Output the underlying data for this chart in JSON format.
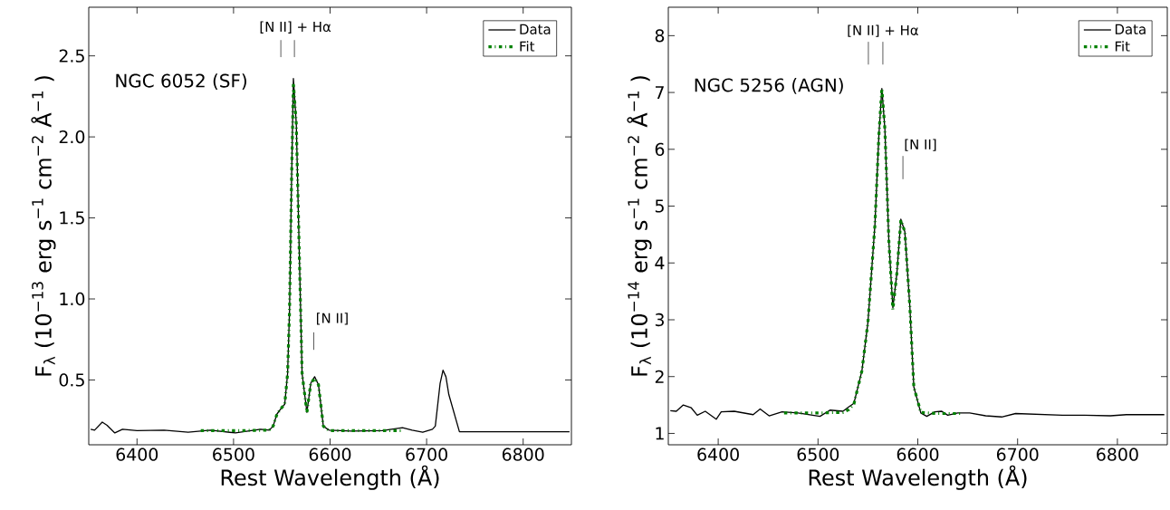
{
  "chart_data": [
    {
      "type": "line",
      "xlabel": "Rest Wavelength (Å)",
      "ylabel": "F$_{λ}$ (10$^{−13}$ erg s$^{−1}$ cm$^{−2}$ Å$^{−1}$ )",
      "xlim": [
        6350,
        6850
      ],
      "ylim": [
        0.1,
        2.8
      ],
      "xticks": [
        6400,
        6500,
        6600,
        6700,
        6800
      ],
      "yticks": [
        {
          "value": 0.5,
          "label": "0.5"
        },
        {
          "value": 1.0,
          "label": "1.0"
        },
        {
          "value": 1.5,
          "label": "1.5"
        },
        {
          "value": 2.0,
          "label": "2.0"
        },
        {
          "value": 2.5,
          "label": "2.5"
        }
      ],
      "legend": "top right",
      "grid": false,
      "annotations": [
        "NGC 6052  (SF)",
        "[N II] + Hα",
        "[N II]"
      ],
      "series": [
        {
          "name": "Data",
          "color": "#000000",
          "line_style": "solid",
          "x": [
            6352,
            6356,
            6364,
            6369,
            6377,
            6385,
            6400,
            6428,
            6453,
            6476,
            6502,
            6528,
            6537,
            6541,
            6545,
            6550,
            6553,
            6556,
            6558,
            6560,
            6562,
            6565,
            6568,
            6571,
            6576,
            6580,
            6584,
            6588,
            6593,
            6599,
            6622,
            6654,
            6675,
            6685,
            6696,
            6706,
            6709,
            6714,
            6717,
            6720,
            6723,
            6734,
            6768,
            6800,
            6848
          ],
          "values": [
            0.196,
            0.19,
            0.24,
            0.22,
            0.173,
            0.196,
            0.187,
            0.19,
            0.177,
            0.19,
            0.173,
            0.196,
            0.19,
            0.215,
            0.29,
            0.33,
            0.35,
            0.54,
            0.93,
            1.7,
            2.36,
            2.08,
            1.31,
            0.54,
            0.3,
            0.48,
            0.52,
            0.47,
            0.215,
            0.19,
            0.185,
            0.187,
            0.206,
            0.19,
            0.177,
            0.196,
            0.215,
            0.48,
            0.56,
            0.52,
            0.41,
            0.18,
            0.18,
            0.18,
            0.18
          ]
        },
        {
          "name": "Fit",
          "color": "#008000",
          "line_style": "dotted",
          "x": [
            6466,
            6500,
            6537,
            6541,
            6545,
            6550,
            6553,
            6556,
            6558,
            6560,
            6562,
            6565,
            6568,
            6571,
            6576,
            6580,
            6584,
            6588,
            6593,
            6599,
            6675
          ],
          "values": [
            0.187,
            0.187,
            0.19,
            0.215,
            0.29,
            0.33,
            0.35,
            0.54,
            0.93,
            1.7,
            2.33,
            2.08,
            1.31,
            0.54,
            0.3,
            0.48,
            0.51,
            0.47,
            0.215,
            0.187,
            0.187
          ]
        }
      ]
    },
    {
      "type": "line",
      "xlabel": "Rest Wavelength (Å)",
      "ylabel": "F$_{λ}$ (10$^{−14}$ erg s$^{−1}$ cm$^{−2}$ Å$^{−1}$ )",
      "xlim": [
        6350,
        6850
      ],
      "ylim": [
        0.8,
        8.5
      ],
      "xticks": [
        6400,
        6500,
        6600,
        6700,
        6800
      ],
      "yticks": [
        1,
        2,
        3,
        4,
        5,
        6,
        7,
        8
      ],
      "legend": "top right",
      "grid": false,
      "annotations": [
        "NGC 5256  (AGN)",
        "[N II] + Hα",
        "[N II]"
      ],
      "series": [
        {
          "name": "Data",
          "color": "#000000",
          "line_style": "solid",
          "x": [
            6352,
            6358,
            6365,
            6373,
            6379,
            6387,
            6398,
            6403,
            6416,
            6435,
            6442,
            6451,
            6464,
            6480,
            6502,
            6512,
            6525,
            6531,
            6536,
            6544,
            6550,
            6557,
            6561,
            6564,
            6567,
            6571,
            6575,
            6579,
            6583,
            6587,
            6592,
            6596,
            6603,
            6609,
            6617,
            6624,
            6630,
            6640,
            6652,
            6668,
            6684,
            6698,
            6745,
            6767,
            6793,
            6809,
            6847
          ],
          "values": [
            1.4,
            1.39,
            1.5,
            1.45,
            1.32,
            1.39,
            1.25,
            1.38,
            1.39,
            1.33,
            1.43,
            1.31,
            1.38,
            1.36,
            1.3,
            1.41,
            1.39,
            1.47,
            1.53,
            2.1,
            2.95,
            4.66,
            6.25,
            7.07,
            6.36,
            4.38,
            3.21,
            3.81,
            4.77,
            4.55,
            3.24,
            1.82,
            1.36,
            1.3,
            1.38,
            1.39,
            1.32,
            1.36,
            1.36,
            1.31,
            1.29,
            1.35,
            1.32,
            1.32,
            1.31,
            1.33,
            1.33
          ]
        },
        {
          "name": "Fit",
          "color": "#008000",
          "line_style": "dotted",
          "x": [
            6466,
            6500,
            6525,
            6531,
            6536,
            6544,
            6550,
            6557,
            6561,
            6564,
            6567,
            6571,
            6575,
            6579,
            6583,
            6587,
            6592,
            6596,
            6603,
            6620,
            6645
          ],
          "values": [
            1.36,
            1.36,
            1.37,
            1.42,
            1.52,
            2.1,
            2.95,
            4.66,
            6.25,
            7.07,
            6.36,
            4.38,
            3.18,
            3.81,
            4.75,
            4.55,
            3.24,
            1.82,
            1.37,
            1.35,
            1.35
          ]
        }
      ]
    }
  ]
}
